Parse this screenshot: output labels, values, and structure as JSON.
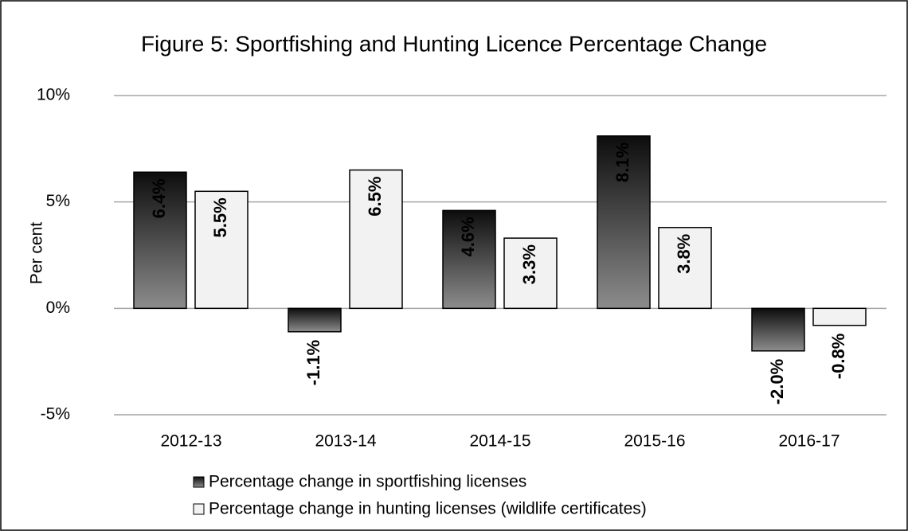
{
  "chart_data": {
    "type": "bar",
    "title": "Figure 5: Sportfishing and Hunting Licence Percentage Change",
    "y_label": "Per cent",
    "categories": [
      "2012-13",
      "2013-14",
      "2014-15",
      "2015-16",
      "2016-17"
    ],
    "series": [
      {
        "name": "Percentage change in sportfishing licenses",
        "color": "#0d0d0d",
        "values": [
          6.4,
          -1.1,
          4.6,
          8.1,
          -2.0
        ],
        "value_labels": [
          "6.4%",
          "-1.1%",
          "4.6%",
          "8.1%",
          "-2.0%"
        ]
      },
      {
        "name": "Percentage change in hunting licenses (wildlife certificates)",
        "color": "#f2f2f2",
        "values": [
          5.5,
          6.5,
          3.3,
          3.8,
          -0.8
        ],
        "value_labels": [
          "5.5%",
          "6.5%",
          "3.3%",
          "3.8%",
          "-0.8%"
        ]
      }
    ],
    "ylim": [
      -5,
      10
    ],
    "yticks": [
      {
        "value": -5,
        "label": "-5%"
      },
      {
        "value": 0,
        "label": "0%"
      },
      {
        "value": 5,
        "label": "5%"
      },
      {
        "value": 10,
        "label": "10%"
      }
    ],
    "grid": true,
    "legend": "bottom"
  }
}
